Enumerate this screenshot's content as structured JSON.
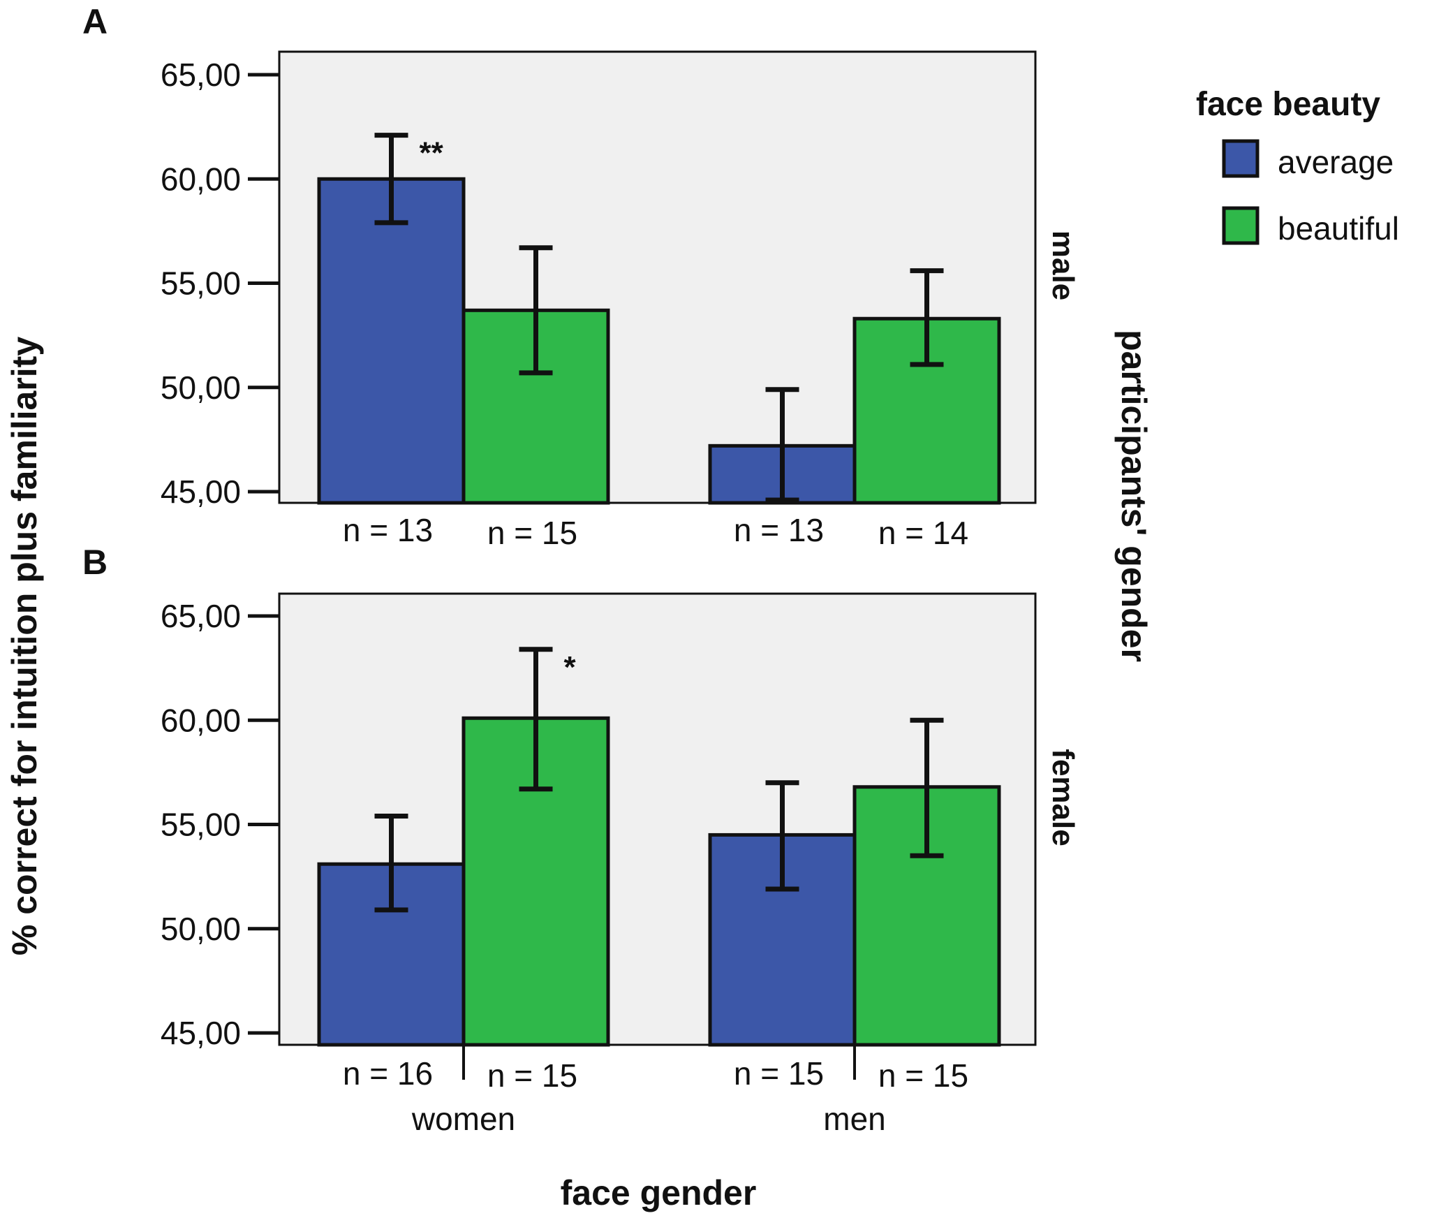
{
  "colors": {
    "average": "#3c57a8",
    "beautiful": "#2fb84a",
    "panel_bg": "#f0f0f0",
    "axis": "#111111"
  },
  "chart_data": {
    "type": "bar",
    "x_title": "face gender",
    "y_title": "% correct for intuition plus familiarity",
    "row_title": "participants' gender",
    "categories": [
      "women",
      "men"
    ],
    "ylim": [
      45,
      65
    ],
    "y_ticks": [
      "45,00",
      "50,00",
      "55,00",
      "60,00",
      "65,00"
    ],
    "legend": {
      "title": "face beauty",
      "items": [
        {
          "name": "average",
          "color": "#3c57a8"
        },
        {
          "name": "beautiful",
          "color": "#2fb84a"
        }
      ]
    },
    "panels": [
      {
        "letter": "A",
        "row_label": "male",
        "series": [
          {
            "name": "average",
            "values": [
              60.0,
              47.2
            ],
            "err_low": [
              57.9,
              44.6
            ],
            "err_high": [
              62.1,
              49.9
            ],
            "n": [
              "n = 13",
              "n = 13"
            ],
            "sig": [
              "**",
              ""
            ]
          },
          {
            "name": "beautiful",
            "values": [
              53.7,
              53.3
            ],
            "err_low": [
              50.7,
              51.1
            ],
            "err_high": [
              56.7,
              55.6
            ],
            "n": [
              "n = 15",
              "n = 14"
            ],
            "sig": [
              "",
              ""
            ]
          }
        ]
      },
      {
        "letter": "B",
        "row_label": "female",
        "series": [
          {
            "name": "average",
            "values": [
              53.1,
              54.5
            ],
            "err_low": [
              50.9,
              51.9
            ],
            "err_high": [
              55.4,
              57.0
            ],
            "n": [
              "n = 16",
              "n = 15"
            ],
            "sig": [
              "",
              ""
            ]
          },
          {
            "name": "beautiful",
            "values": [
              60.1,
              56.8
            ],
            "err_low": [
              56.7,
              53.5
            ],
            "err_high": [
              63.4,
              60.0
            ],
            "n": [
              "n = 15",
              "n = 15"
            ],
            "sig": [
              "*",
              ""
            ]
          }
        ]
      }
    ]
  }
}
